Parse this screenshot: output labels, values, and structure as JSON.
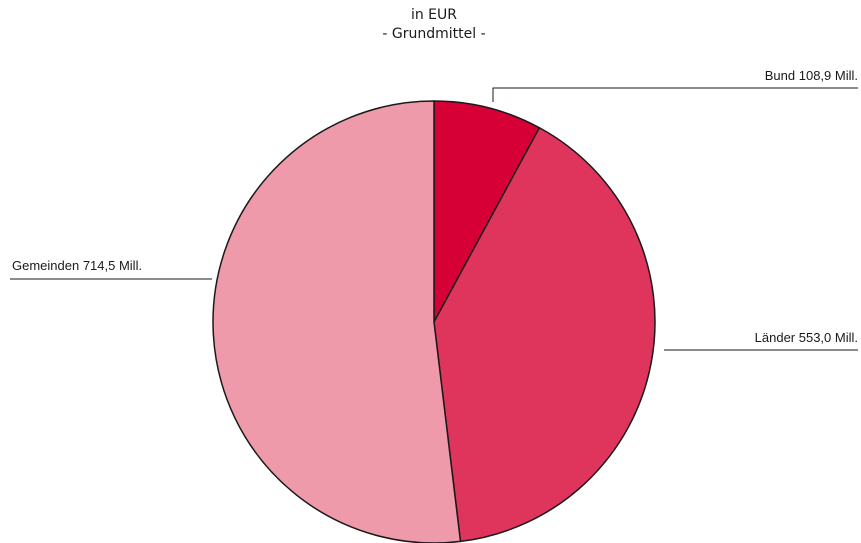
{
  "chart_data": {
    "type": "pie",
    "title": "in EUR",
    "subtitle": "- Grundmittel -",
    "slices": [
      {
        "name": "Bund",
        "value": 108.9,
        "label": "Bund 108,9 Mill.",
        "color": "#d70036"
      },
      {
        "name": "Länder",
        "value": 553.0,
        "label": "Länder 553,0 Mill.",
        "color": "#df345b"
      },
      {
        "name": "Gemeinden",
        "value": 714.5,
        "label": "Gemeinden 714,5 Mill.",
        "color": "#ef9aab"
      }
    ]
  }
}
